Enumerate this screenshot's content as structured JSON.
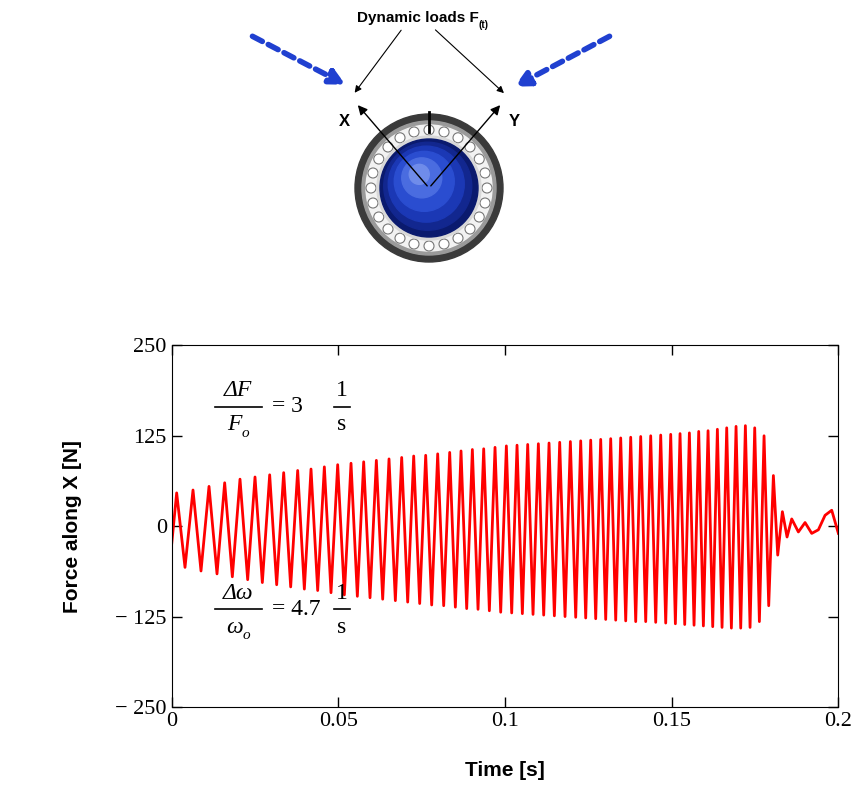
{
  "chart_data": {
    "type": "line",
    "xlabel": "Time [s]",
    "ylabel": "Force along X [N]",
    "xlim": [
      0,
      0.2
    ],
    "ylim": [
      -250,
      250
    ],
    "xticks": [
      0,
      0.05,
      0.1,
      0.15,
      0.2
    ],
    "yticks": [
      {
        "value": -250,
        "label": "− 250"
      },
      {
        "value": -125,
        "label": "− 125"
      },
      0,
      125,
      250
    ],
    "grid": false,
    "color": "#ff0000",
    "x": [
      0,
      0.0015,
      0.004,
      0.0064,
      0.0088,
      0.0112,
      0.0136,
      0.0159,
      0.0182,
      0.0205,
      0.0228,
      0.025,
      0.0272,
      0.0294,
      0.0315,
      0.0336,
      0.0357,
      0.0378,
      0.0398,
      0.0418,
      0.0438,
      0.0458,
      0.0478,
      0.0498,
      0.0518,
      0.0538,
      0.0557,
      0.0576,
      0.0595,
      0.0614,
      0.0633,
      0.0652,
      0.0671,
      0.069,
      0.0708,
      0.0726,
      0.0744,
      0.0762,
      0.078,
      0.0798,
      0.0816,
      0.0834,
      0.0851,
      0.0868,
      0.0885,
      0.0902,
      0.0919,
      0.0936,
      0.0953,
      0.097,
      0.0987,
      0.1004,
      0.102,
      0.1036,
      0.1052,
      0.1068,
      0.1084,
      0.11,
      0.1116,
      0.1132,
      0.1148,
      0.1164,
      0.118,
      0.1196,
      0.1212,
      0.1227,
      0.1242,
      0.1257,
      0.1272,
      0.1287,
      0.1302,
      0.1317,
      0.1332,
      0.1347,
      0.1362,
      0.1377,
      0.1392,
      0.1407,
      0.1422,
      0.1437,
      0.1452,
      0.1467,
      0.1482,
      0.1497,
      0.1511,
      0.1525,
      0.1539,
      0.1553,
      0.1567,
      0.1581,
      0.1595,
      0.1609,
      0.1623,
      0.1637,
      0.1651,
      0.1665,
      0.1679,
      0.1693,
      0.1707,
      0.1721,
      0.1735,
      0.1749,
      0.1763,
      0.1777,
      0.1791,
      0.1805,
      0.1818,
      0.1832,
      0.1846,
      0.186,
      0.188,
      0.19,
      0.192,
      0.194,
      0.196,
      0.198,
      0.2
    ],
    "values": [
      -25,
      46,
      -57,
      50,
      -62,
      55,
      -66,
      60,
      -70,
      65,
      -74,
      68,
      -78,
      71,
      -81,
      74,
      -84,
      77,
      -87,
      79,
      -89,
      82,
      -92,
      85,
      -95,
      87,
      -97,
      89,
      -99,
      91,
      -101,
      93,
      -103,
      95,
      -105,
      97,
      -107,
      98,
      -109,
      100,
      -110,
      102,
      -112,
      104,
      -114,
      106,
      -115,
      107,
      -117,
      109,
      -119,
      111,
      -120,
      112,
      -121,
      113,
      -122,
      114,
      -123,
      115,
      -124,
      116,
      -125,
      117,
      -126,
      118,
      -127,
      119,
      -128,
      120,
      -129,
      121,
      -130,
      122,
      -131,
      123,
      -132,
      124,
      -132,
      125,
      -133,
      126,
      -134,
      127,
      -135,
      128,
      -136,
      129,
      -137,
      131,
      -138,
      132,
      -139,
      134,
      -140,
      136,
      -141,
      138,
      -141,
      139,
      -140,
      136,
      -132,
      125,
      -110,
      70,
      -40,
      20,
      -15,
      10,
      -8,
      5,
      -10,
      -5,
      15,
      22,
      -10
    ],
    "annotations": [
      {
        "numerator": "ΔF",
        "denominator": "F",
        "denominator_subscript": "o",
        "sign": "=",
        "value": 3,
        "unit_numerator": "1",
        "unit_denominator": "s"
      },
      {
        "numerator": "Δω",
        "denominator": "ω",
        "denominator_subscript": "o",
        "sign": "=",
        "value": 4.7,
        "unit_numerator": "1",
        "unit_denominator": "s"
      }
    ]
  },
  "diagram": {
    "title": {
      "text": "Dynamic loads F",
      "subscript": "(t)"
    },
    "axis_labels": [
      "X",
      "Y"
    ]
  }
}
